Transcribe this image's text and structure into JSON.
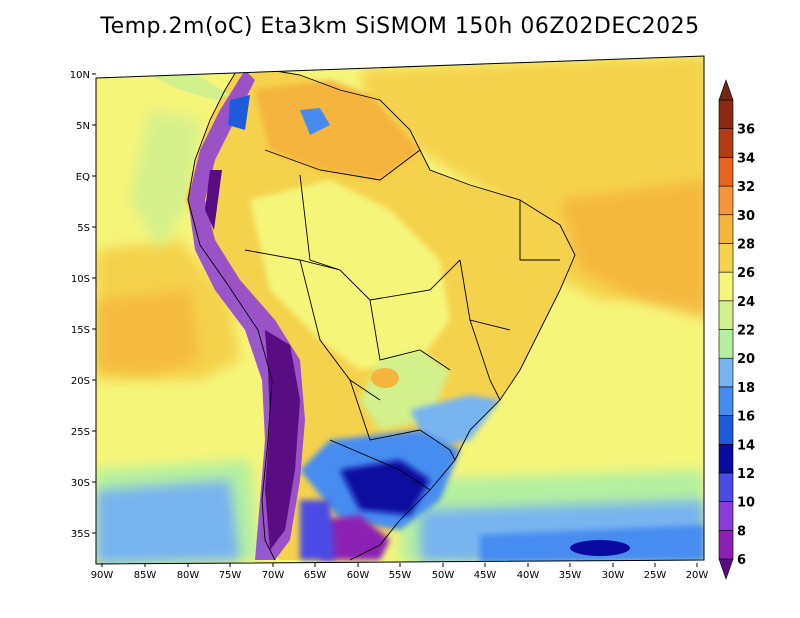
{
  "title": "Temp.2m(oC) Eta3km SiSMOM 150h 06Z02DEC2025",
  "lat_labels": [
    "10N",
    "5N",
    "EQ",
    "5S",
    "10S",
    "15S",
    "20S",
    "25S",
    "30S",
    "35S"
  ],
  "lon_labels": [
    "90W",
    "85W",
    "80W",
    "75W",
    "70W",
    "65W",
    "60W",
    "55W",
    "50W",
    "45W",
    "40W",
    "35W",
    "30W",
    "25W",
    "20W"
  ],
  "colorbar": {
    "levels": [
      "6",
      "8",
      "10",
      "12",
      "14",
      "16",
      "18",
      "20",
      "22",
      "24",
      "26",
      "28",
      "30",
      "32",
      "34",
      "36"
    ],
    "colors": [
      "#5a0d82",
      "#8c20b4",
      "#8a3cdc",
      "#4b4be6",
      "#0a0aa0",
      "#1e5adc",
      "#468cf0",
      "#78b4f0",
      "#b4f0a0",
      "#d2f08c",
      "#f5f57a",
      "#f5d24b",
      "#f5b43c",
      "#f5963c",
      "#e6641e",
      "#b43c14",
      "#8c2814",
      "#6e2814"
    ]
  }
}
